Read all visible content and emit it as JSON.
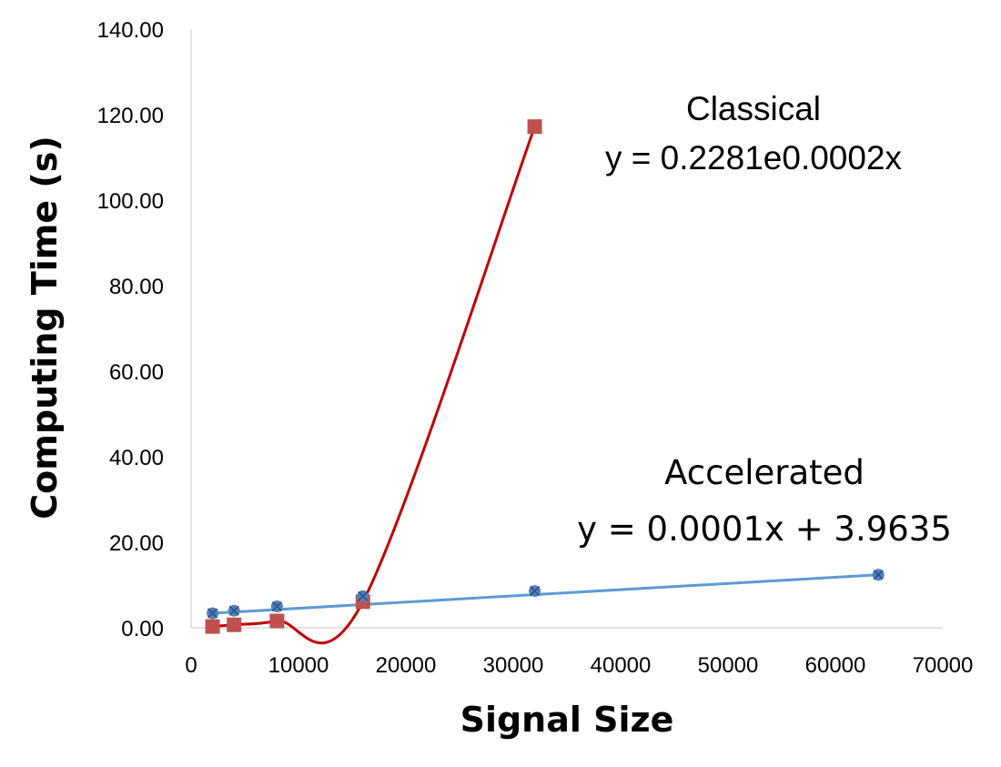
{
  "chart_data": {
    "type": "scatter",
    "xlabel": "Signal Size",
    "ylabel": "Computing Time (s)",
    "xlim": [
      0,
      70000
    ],
    "ylim": [
      0,
      140
    ],
    "xticks": [
      "0",
      "10000",
      "20000",
      "30000",
      "40000",
      "50000",
      "60000",
      "70000"
    ],
    "yticks": [
      "0.00",
      "20.00",
      "40.00",
      "60.00",
      "80.00",
      "100.00",
      "120.00",
      "140.00"
    ],
    "series": [
      {
        "name": "Classical",
        "color": "#c0504d",
        "marker": "square",
        "x": [
          2000,
          4000,
          8000,
          16000,
          32000
        ],
        "y": [
          0.3,
          0.7,
          1.6,
          6.1,
          117.2
        ],
        "trend_color": "#c00000",
        "trend_type": "smoothed curve",
        "equation": "y = 0.2281e0.0002x"
      },
      {
        "name": "Accelerated",
        "color": "#4f81bd",
        "marker": "circle",
        "x": [
          2000,
          4000,
          8000,
          16000,
          32000,
          64000
        ],
        "y": [
          3.4,
          4.0,
          5.0,
          7.4,
          8.6,
          12.4
        ],
        "trend_color": "#5b9bd5",
        "trend_type": "linear",
        "equation": "y = 0.0001x + 3.9635"
      }
    ],
    "grid": false,
    "legend": "none"
  }
}
